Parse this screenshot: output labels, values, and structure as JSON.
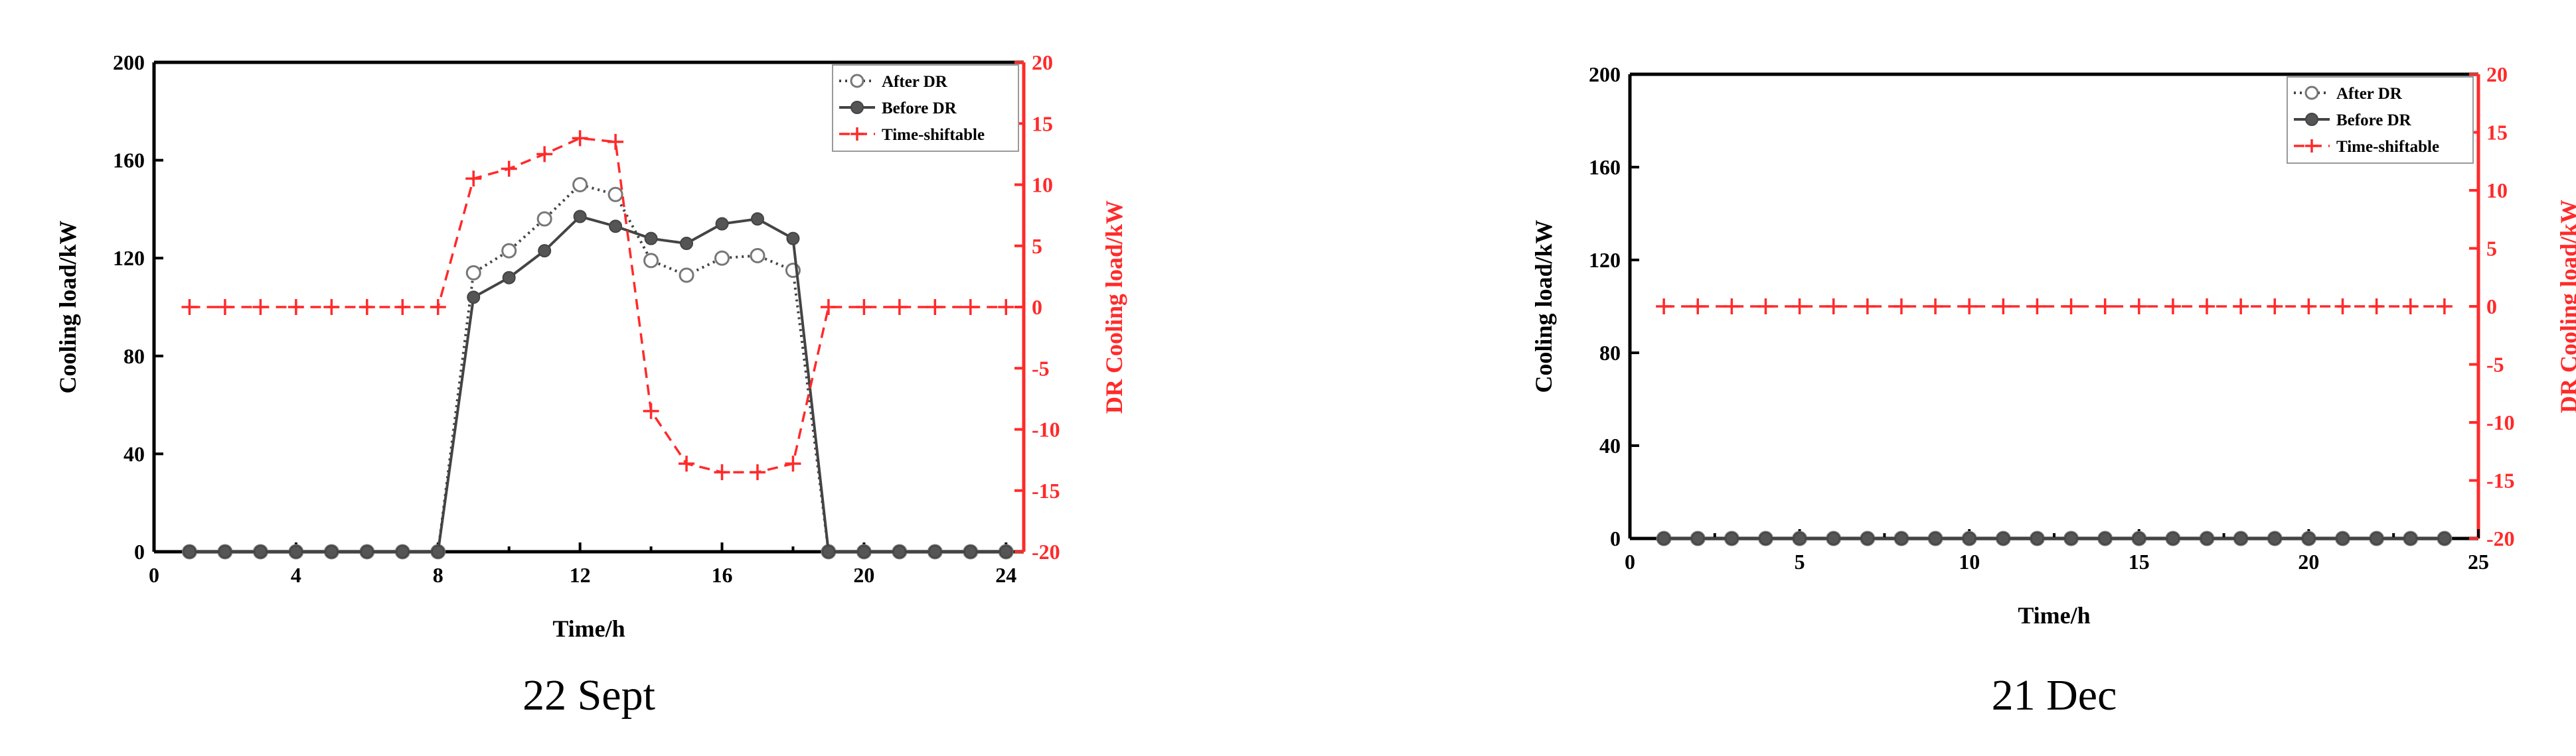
{
  "chart_data": [
    {
      "type": "line",
      "caption": "22 Sept",
      "xlabel": "Time/h",
      "ylabel": "Cooling load/kW",
      "y2label": "DR Cooling load/kW",
      "xlim": [
        0,
        24.5
      ],
      "ylim": [
        0,
        200
      ],
      "y2lim": [
        -20,
        20
      ],
      "xticks": [
        0,
        4,
        8,
        12,
        16,
        20,
        24
      ],
      "yticks": [
        0,
        40,
        80,
        120,
        160,
        200
      ],
      "y2ticks": [
        -20,
        -15,
        -10,
        -5,
        0,
        5,
        10,
        15,
        20
      ],
      "legend_position": "top-right",
      "series": [
        {
          "name": "After DR",
          "axis": "left",
          "marker": "open-circle",
          "style": "dotted",
          "x": [
            1,
            2,
            3,
            4,
            5,
            6,
            7,
            8,
            9,
            10,
            11,
            12,
            13,
            14,
            15,
            16,
            17,
            18,
            19,
            20,
            21,
            22,
            23,
            24
          ],
          "values": [
            0,
            0,
            0,
            0,
            0,
            0,
            0,
            0,
            114,
            123,
            136,
            150,
            146,
            119,
            113,
            120,
            121,
            115,
            0,
            0,
            0,
            0,
            0,
            0
          ]
        },
        {
          "name": "Before DR",
          "axis": "left",
          "marker": "filled-circle",
          "style": "solid",
          "x": [
            1,
            2,
            3,
            4,
            5,
            6,
            7,
            8,
            9,
            10,
            11,
            12,
            13,
            14,
            15,
            16,
            17,
            18,
            19,
            20,
            21,
            22,
            23,
            24
          ],
          "values": [
            0,
            0,
            0,
            0,
            0,
            0,
            0,
            0,
            104,
            112,
            123,
            137,
            133,
            128,
            126,
            134,
            136,
            128,
            0,
            0,
            0,
            0,
            0,
            0
          ]
        },
        {
          "name": "Time-shiftable",
          "axis": "right",
          "marker": "plus",
          "style": "dashed",
          "x": [
            1,
            2,
            3,
            4,
            5,
            6,
            7,
            8,
            9,
            10,
            11,
            12,
            13,
            14,
            15,
            16,
            17,
            18,
            19,
            20,
            21,
            22,
            23,
            24
          ],
          "values": [
            0,
            0,
            0,
            0,
            0,
            0,
            0,
            0,
            10.5,
            11.3,
            12.5,
            13.8,
            13.5,
            -8.5,
            -12.8,
            -13.5,
            -13.5,
            -12.8,
            0,
            0,
            0,
            0,
            0,
            0
          ]
        }
      ]
    },
    {
      "type": "line",
      "caption": "21 Dec",
      "xlabel": "Time/h",
      "ylabel": "Cooling load/kW",
      "y2label": "DR Cooling load/kW",
      "xlim": [
        0,
        25
      ],
      "ylim": [
        0,
        200
      ],
      "y2lim": [
        -20,
        20
      ],
      "xticks": [
        0,
        5,
        10,
        15,
        20,
        25
      ],
      "yticks": [
        0,
        40,
        80,
        120,
        160,
        200
      ],
      "y2ticks": [
        -20,
        -15,
        -10,
        -5,
        0,
        5,
        10,
        15,
        20
      ],
      "legend_position": "top-right",
      "series": [
        {
          "name": "After DR",
          "axis": "left",
          "marker": "open-circle",
          "style": "dotted",
          "x": [
            1,
            2,
            3,
            4,
            5,
            6,
            7,
            8,
            9,
            10,
            11,
            12,
            13,
            14,
            15,
            16,
            17,
            18,
            19,
            20,
            21,
            22,
            23,
            24
          ],
          "values": [
            0,
            0,
            0,
            0,
            0,
            0,
            0,
            0,
            0,
            0,
            0,
            0,
            0,
            0,
            0,
            0,
            0,
            0,
            0,
            0,
            0,
            0,
            0,
            0
          ]
        },
        {
          "name": "Before DR",
          "axis": "left",
          "marker": "filled-circle",
          "style": "solid",
          "x": [
            1,
            2,
            3,
            4,
            5,
            6,
            7,
            8,
            9,
            10,
            11,
            12,
            13,
            14,
            15,
            16,
            17,
            18,
            19,
            20,
            21,
            22,
            23,
            24
          ],
          "values": [
            0,
            0,
            0,
            0,
            0,
            0,
            0,
            0,
            0,
            0,
            0,
            0,
            0,
            0,
            0,
            0,
            0,
            0,
            0,
            0,
            0,
            0,
            0,
            0
          ]
        },
        {
          "name": "Time-shiftable",
          "axis": "right",
          "marker": "plus",
          "style": "dashed",
          "x": [
            1,
            2,
            3,
            4,
            5,
            6,
            7,
            8,
            9,
            10,
            11,
            12,
            13,
            14,
            15,
            16,
            17,
            18,
            19,
            20,
            21,
            22,
            23,
            24
          ],
          "values": [
            0,
            0,
            0,
            0,
            0,
            0,
            0,
            0,
            0,
            0,
            0,
            0,
            0,
            0,
            0,
            0,
            0,
            0,
            0,
            0,
            0,
            0,
            0,
            0
          ]
        }
      ]
    }
  ]
}
